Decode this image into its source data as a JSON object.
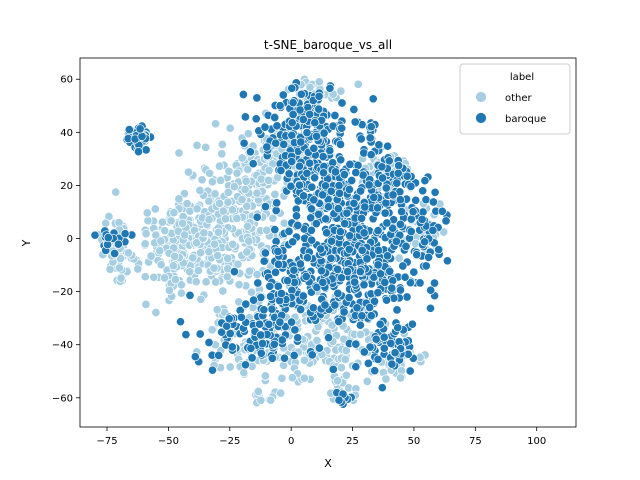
{
  "chart_data": {
    "type": "scatter",
    "title": "t-SNE_baroque_vs_all",
    "xlabel": "X",
    "ylabel": "Y",
    "xlim": [
      -86,
      116
    ],
    "ylim": [
      -71,
      68
    ],
    "xticks": [
      -75,
      -50,
      -25,
      0,
      25,
      50,
      75,
      100
    ],
    "yticks": [
      -60,
      -40,
      -20,
      0,
      20,
      40,
      60
    ],
    "grid": false,
    "legend": {
      "title": "label",
      "placement": "top-right",
      "entries": [
        "other",
        "baroque"
      ]
    },
    "series": [
      {
        "name": "other",
        "color": "#a6cee3",
        "clusters": [
          {
            "cx": -40,
            "cy": -2,
            "sx": 13,
            "sy": 10,
            "n": 330
          },
          {
            "cx": -20,
            "cy": 18,
            "sx": 10,
            "sy": 9,
            "n": 110
          },
          {
            "cx": -70,
            "cy": -5,
            "sx": 3,
            "sy": 6,
            "n": 50
          },
          {
            "cx": -5,
            "cy": 32,
            "sx": 8,
            "sy": 5,
            "n": 70
          },
          {
            "cx": 10,
            "cy": 55,
            "sx": 6,
            "sy": 3,
            "n": 30
          },
          {
            "cx": 12,
            "cy": -38,
            "sx": 12,
            "sy": 8,
            "n": 160
          },
          {
            "cx": -20,
            "cy": -38,
            "sx": 8,
            "sy": 8,
            "n": 70
          },
          {
            "cx": 38,
            "cy": 25,
            "sx": 6,
            "sy": 4,
            "n": 50
          },
          {
            "cx": 45,
            "cy": -45,
            "sx": 6,
            "sy": 4,
            "n": 30
          },
          {
            "cx": 55,
            "cy": 2,
            "sx": 5,
            "sy": 7,
            "n": 30
          },
          {
            "cx": -15,
            "cy": 5,
            "sx": 8,
            "sy": 10,
            "n": 70
          },
          {
            "cx": 20,
            "cy": -55,
            "sx": 3,
            "sy": 4,
            "n": 15
          },
          {
            "cx": -12,
            "cy": -60,
            "sx": 3,
            "sy": 2,
            "n": 10
          }
        ]
      },
      {
        "name": "baroque",
        "color": "#1f78b4",
        "clusters": [
          {
            "cx": 25,
            "cy": -10,
            "sx": 16,
            "sy": 13,
            "n": 480
          },
          {
            "cx": 5,
            "cy": 40,
            "sx": 9,
            "sy": 9,
            "n": 200
          },
          {
            "cx": 15,
            "cy": 18,
            "sx": 9,
            "sy": 10,
            "n": 140
          },
          {
            "cx": -62,
            "cy": 37,
            "sx": 3,
            "sy": 2.5,
            "n": 45
          },
          {
            "cx": 40,
            "cy": 20,
            "sx": 6,
            "sy": 7,
            "n": 70
          },
          {
            "cx": -18,
            "cy": -38,
            "sx": 10,
            "sy": 5,
            "n": 80
          },
          {
            "cx": 40,
            "cy": -40,
            "sx": 6,
            "sy": 5,
            "n": 50
          },
          {
            "cx": 55,
            "cy": 5,
            "sx": 4,
            "sy": 6,
            "n": 35
          },
          {
            "cx": -72,
            "cy": 0,
            "sx": 4,
            "sy": 3,
            "n": 18
          },
          {
            "cx": -5,
            "cy": -20,
            "sx": 8,
            "sy": 8,
            "n": 70
          },
          {
            "cx": 33,
            "cy": 38,
            "sx": 2,
            "sy": 5,
            "n": 15
          },
          {
            "cx": 21,
            "cy": -60,
            "sx": 2,
            "sy": 2,
            "n": 8
          }
        ]
      }
    ]
  }
}
